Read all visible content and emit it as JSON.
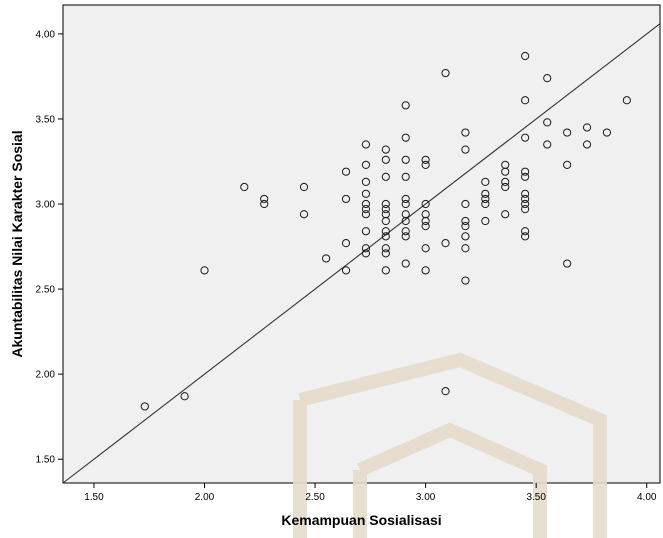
{
  "chart_data": {
    "type": "scatter",
    "xlabel": "Kemampuan Sosialisasi",
    "ylabel": "Akuntabilitas Nilai Karakter Sosial",
    "xlim": [
      1.36,
      4.06
    ],
    "ylim": [
      1.36,
      4.17
    ],
    "xticks": [
      "1.50",
      "2.00",
      "2.50",
      "3.00",
      "3.50",
      "4.00"
    ],
    "yticks": [
      "1.50",
      "2.00",
      "2.50",
      "3.00",
      "3.50",
      "4.00"
    ],
    "grid": false,
    "background_color": "#f0f0f0",
    "watermark": "faint university logo (bottom right)",
    "fit_line": {
      "from": [
        1.36,
        1.36
      ],
      "to": [
        4.06,
        4.06
      ]
    },
    "points": [
      [
        1.73,
        1.81
      ],
      [
        1.91,
        1.87
      ],
      [
        2.0,
        2.61
      ],
      [
        2.18,
        3.1
      ],
      [
        2.27,
        3.03
      ],
      [
        2.27,
        3.0
      ],
      [
        2.45,
        3.1
      ],
      [
        2.45,
        2.94
      ],
      [
        2.55,
        2.68
      ],
      [
        2.64,
        3.19
      ],
      [
        2.64,
        3.03
      ],
      [
        2.64,
        2.77
      ],
      [
        2.64,
        2.61
      ],
      [
        2.73,
        3.35
      ],
      [
        2.73,
        3.23
      ],
      [
        2.73,
        3.13
      ],
      [
        2.73,
        3.06
      ],
      [
        2.73,
        3.0
      ],
      [
        2.73,
        2.97
      ],
      [
        2.73,
        2.94
      ],
      [
        2.73,
        2.84
      ],
      [
        2.73,
        2.74
      ],
      [
        2.73,
        2.71
      ],
      [
        2.82,
        3.32
      ],
      [
        2.82,
        3.26
      ],
      [
        2.82,
        3.16
      ],
      [
        2.82,
        3.0
      ],
      [
        2.82,
        2.97
      ],
      [
        2.82,
        2.94
      ],
      [
        2.82,
        2.9
      ],
      [
        2.82,
        2.84
      ],
      [
        2.82,
        2.81
      ],
      [
        2.82,
        2.74
      ],
      [
        2.82,
        2.71
      ],
      [
        2.82,
        2.61
      ],
      [
        2.91,
        3.58
      ],
      [
        2.91,
        3.39
      ],
      [
        2.91,
        3.26
      ],
      [
        2.91,
        3.16
      ],
      [
        2.91,
        3.03
      ],
      [
        2.91,
        3.0
      ],
      [
        2.91,
        2.94
      ],
      [
        2.91,
        2.9
      ],
      [
        2.91,
        2.84
      ],
      [
        2.91,
        2.81
      ],
      [
        2.91,
        2.65
      ],
      [
        3.0,
        3.26
      ],
      [
        3.0,
        3.23
      ],
      [
        3.0,
        3.0
      ],
      [
        3.0,
        2.94
      ],
      [
        3.0,
        2.9
      ],
      [
        3.0,
        2.87
      ],
      [
        3.0,
        2.74
      ],
      [
        3.0,
        2.61
      ],
      [
        3.09,
        3.77
      ],
      [
        3.09,
        2.77
      ],
      [
        3.09,
        1.9
      ],
      [
        3.18,
        3.42
      ],
      [
        3.18,
        3.32
      ],
      [
        3.18,
        3.0
      ],
      [
        3.18,
        2.9
      ],
      [
        3.18,
        2.87
      ],
      [
        3.18,
        2.81
      ],
      [
        3.18,
        2.74
      ],
      [
        3.18,
        2.55
      ],
      [
        3.27,
        3.13
      ],
      [
        3.27,
        3.06
      ],
      [
        3.27,
        3.03
      ],
      [
        3.27,
        3.0
      ],
      [
        3.27,
        2.9
      ],
      [
        3.36,
        3.23
      ],
      [
        3.36,
        3.19
      ],
      [
        3.36,
        3.13
      ],
      [
        3.36,
        3.1
      ],
      [
        3.36,
        2.94
      ],
      [
        3.45,
        3.87
      ],
      [
        3.45,
        3.61
      ],
      [
        3.45,
        3.39
      ],
      [
        3.45,
        3.19
      ],
      [
        3.45,
        3.16
      ],
      [
        3.45,
        3.06
      ],
      [
        3.45,
        3.03
      ],
      [
        3.45,
        3.0
      ],
      [
        3.45,
        2.97
      ],
      [
        3.45,
        2.84
      ],
      [
        3.45,
        2.81
      ],
      [
        3.55,
        3.74
      ],
      [
        3.55,
        3.48
      ],
      [
        3.55,
        3.35
      ],
      [
        3.64,
        3.42
      ],
      [
        3.64,
        3.23
      ],
      [
        3.64,
        2.65
      ],
      [
        3.73,
        3.45
      ],
      [
        3.73,
        3.35
      ],
      [
        3.82,
        3.42
      ],
      [
        3.91,
        3.61
      ]
    ]
  }
}
